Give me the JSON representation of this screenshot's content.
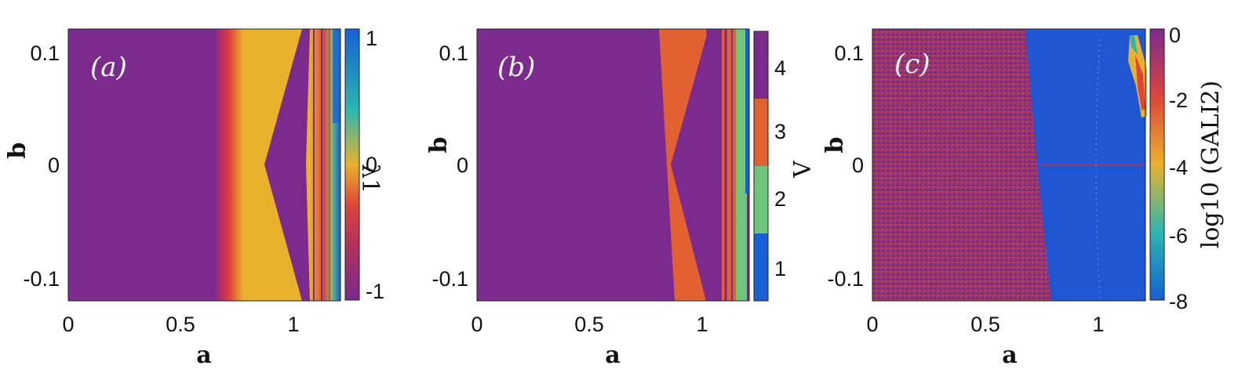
{
  "figure": {
    "panels": [
      {
        "label": "(a)",
        "xlabel": "a",
        "ylabel": "b",
        "x_ticks": [
          "0",
          "0.5",
          "1"
        ],
        "y_ticks": [
          "0.1",
          "0",
          "-0.1"
        ],
        "colorbar": {
          "label": "λ1",
          "ticks": [
            "1",
            "0",
            "-1"
          ]
        }
      },
      {
        "label": "(b)",
        "xlabel": "a",
        "ylabel": "b",
        "x_ticks": [
          "0",
          "0.5",
          "1"
        ],
        "y_ticks": [
          "0.1",
          "0",
          "-0.1"
        ],
        "colorbar": {
          "label": "Λ",
          "ticks": [
            "4",
            "3",
            "2",
            "1"
          ]
        }
      },
      {
        "label": "(c)",
        "xlabel": "a",
        "ylabel": "b",
        "x_ticks": [
          "0",
          "0.5",
          "1"
        ],
        "y_ticks": [
          "0.1",
          "0",
          "-0.1"
        ],
        "colorbar": {
          "label": "log10 (GALI2)",
          "ticks": [
            "0",
            "-2",
            "-4",
            "-6",
            "-8"
          ]
        }
      }
    ]
  },
  "colors": {
    "purple": "#7B2A8E",
    "red": "#E0443A",
    "orange": "#E36030",
    "yellow": "#EAB22A",
    "green": "#6DC679",
    "blue": "#1560D4",
    "cyan": "#2BB7B0",
    "gali_blue": "#1F57D3"
  },
  "chart_data": [
    {
      "type": "heatmap",
      "panel": "(a)",
      "xlabel": "a",
      "ylabel": "b",
      "xlim": [
        0,
        1.21
      ],
      "ylim": [
        -0.12,
        0.12
      ],
      "x_ticks": [
        0,
        0.5,
        1
      ],
      "y_ticks": [
        -0.1,
        0,
        0.1
      ],
      "colorbar": {
        "label": "λ1",
        "range": [
          -1.1,
          1.1
        ],
        "ticks": [
          -1,
          0,
          1
        ]
      },
      "regions": [
        {
          "a_range": [
            0,
            0.65
          ],
          "value": -1
        },
        {
          "a_range": [
            0.65,
            0.78
          ],
          "value": "transition from -1 to 0"
        },
        {
          "a_range": [
            0.78,
            1.05
          ],
          "value": 0,
          "note": "purple wedge (value -1) with tips at a=0.88 and a=1.05 along b=0"
        },
        {
          "a_range": [
            1.05,
            1.21
          ],
          "value": "mixed -1 to 1"
        }
      ]
    },
    {
      "type": "heatmap",
      "panel": "(b)",
      "xlabel": "a",
      "ylabel": "b",
      "xlim": [
        0,
        1.21
      ],
      "ylim": [
        -0.12,
        0.12
      ],
      "x_ticks": [
        0,
        0.5,
        1
      ],
      "y_ticks": [
        -0.1,
        0,
        0.1
      ],
      "colorbar": {
        "label": "Λ",
        "levels": [
          1,
          2,
          3,
          4
        ]
      },
      "regions": [
        {
          "a_range": [
            0,
            0.81
          ],
          "value": 4
        },
        {
          "a_range": [
            0.81,
            1.07
          ],
          "value": 3,
          "note": "Λ=4 wedge with tips near a=0.86 and a=1.07 at b=0"
        },
        {
          "a_range": [
            1.07,
            1.21
          ],
          "value": "mixed 1 to 4"
        }
      ]
    },
    {
      "type": "heatmap",
      "panel": "(c)",
      "xlabel": "a",
      "ylabel": "b",
      "xlim": [
        0,
        1.21
      ],
      "ylim": [
        -0.12,
        0.12
      ],
      "x_ticks": [
        0,
        0.5,
        1
      ],
      "y_ticks": [
        -0.1,
        0,
        0.1
      ],
      "colorbar": {
        "label": "log10 (GALI2)",
        "range": [
          -8,
          0
        ],
        "ticks": [
          -8,
          -6,
          -4,
          -2,
          0
        ]
      },
      "regions": [
        {
          "a_range": [
            0,
            0.72
          ],
          "value": "about -1 (noisy)"
        },
        {
          "a_range": [
            0.72,
            1.21
          ],
          "value": -8,
          "note": "thin line at b=0; small patch near a=1.18, b=0.1 with values -6 to 0"
        }
      ]
    }
  ]
}
